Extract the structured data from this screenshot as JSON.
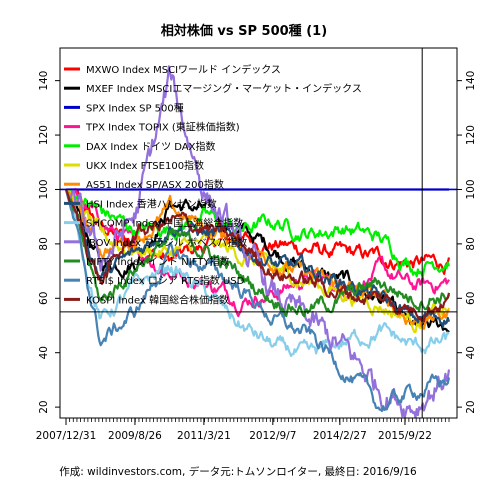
{
  "chart_data": {
    "type": "line",
    "title": "相対株価 vs SP 500種 (1)",
    "caption": "作成: wildinvestors.com, データ元:トムソンロイター, 最終日: 2016/9/16",
    "x_tick_labels": [
      "2007/12/31",
      "2009/8/26",
      "2011/3/21",
      "2012/9/7",
      "2014/2/27",
      "2015/9/22"
    ],
    "x_tick_values": [
      0.0,
      0.18,
      0.36,
      0.54,
      0.715,
      0.885
    ],
    "ylim": [
      16,
      152
    ],
    "y_ticks": [
      20,
      40,
      60,
      80,
      100,
      120,
      140
    ],
    "grid": false,
    "legend_position": "top-left",
    "reference_lines": {
      "horizontal": [
        100,
        55
      ],
      "vertical_x": 0.93
    },
    "series": [
      {
        "name": "MXWO Index MSCIワールド インデックス",
        "color": "#ff0000",
        "values": [
          100,
          86,
          80,
          74,
          79,
          82,
          80,
          78,
          76,
          75,
          73,
          73
        ]
      },
      {
        "name": "MXEF Index MSCIエマージング・マーケット・インデックス",
        "color": "#000000",
        "values": [
          100,
          72,
          74,
          95,
          92,
          85,
          78,
          70,
          66,
          60,
          48,
          50
        ]
      },
      {
        "name": "SPX Index SP 500種",
        "color": "#0000cc",
        "values": [
          100,
          100,
          100,
          100,
          100,
          100,
          100,
          100,
          100,
          100,
          100,
          100
        ]
      },
      {
        "name": "TPX Index TOPIX (東証株価指数)",
        "color": "#ff1493",
        "values": [
          100,
          88,
          78,
          70,
          66,
          60,
          62,
          68,
          64,
          70,
          64,
          66
        ]
      },
      {
        "name": "DAX Index ドイツ DAX指数",
        "color": "#00ee00",
        "values": [
          100,
          92,
          85,
          86,
          90,
          85,
          88,
          84,
          86,
          82,
          72,
          75
        ]
      },
      {
        "name": "UKX Index FTSE100指数",
        "color": "#dddd00",
        "values": [
          100,
          82,
          78,
          77,
          80,
          76,
          70,
          66,
          62,
          58,
          52,
          55
        ]
      },
      {
        "name": "AS51 Index SP/ASX 200指数",
        "color": "#ff8c00",
        "values": [
          100,
          78,
          82,
          92,
          86,
          80,
          74,
          68,
          64,
          60,
          52,
          54
        ]
      },
      {
        "name": "HSI Index 香港ハンセン指数",
        "color": "#1f4e79",
        "values": [
          100,
          68,
          76,
          88,
          84,
          80,
          72,
          70,
          66,
          60,
          52,
          54
        ]
      },
      {
        "name": "SHCOMP Index 中国上海総合指数",
        "color": "#87ceeb",
        "values": [
          100,
          52,
          64,
          72,
          62,
          50,
          42,
          38,
          44,
          48,
          42,
          44
        ]
      },
      {
        "name": "IBOV Index ブラジル ボベスパ指数",
        "color": "#9370db",
        "values": [
          100,
          74,
          90,
          140,
          100,
          78,
          60,
          50,
          40,
          28,
          22,
          33
        ]
      },
      {
        "name": "NIFTY Index インド NIFTY指数",
        "color": "#228b22",
        "values": [
          100,
          58,
          72,
          82,
          78,
          68,
          60,
          56,
          60,
          66,
          60,
          62
        ]
      },
      {
        "name": "RTSI$ Index ロシア RTS指数 USD",
        "color": "#4682b4",
        "values": [
          100,
          44,
          55,
          76,
          72,
          64,
          52,
          46,
          34,
          20,
          26,
          30
        ]
      },
      {
        "name": "KOSPI Index 韓国総合株価指数",
        "color": "#8b1a1a",
        "values": [
          100,
          66,
          84,
          88,
          86,
          80,
          70,
          66,
          62,
          60,
          56,
          60
        ]
      }
    ]
  }
}
